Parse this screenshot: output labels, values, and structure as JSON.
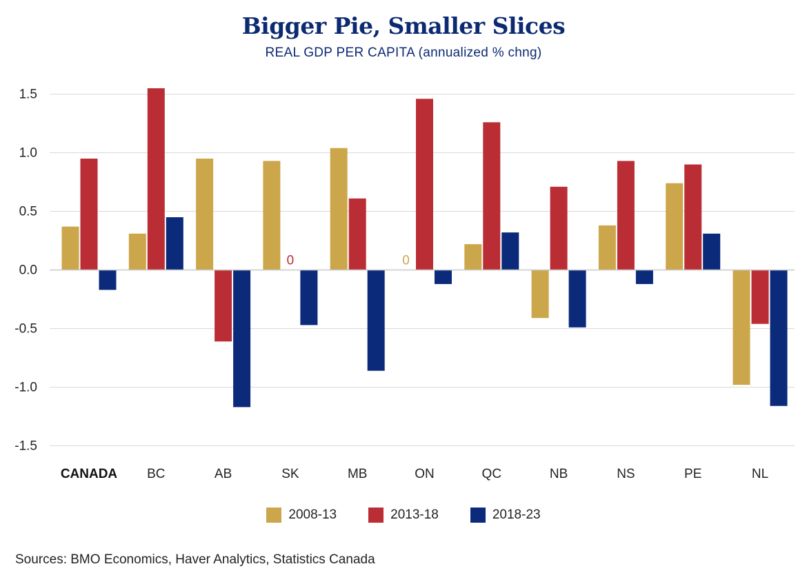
{
  "chart_data": {
    "type": "bar",
    "title": "Bigger Pie, Smaller Slices",
    "subtitle": "REAL GDP PER CAPITA (annualized % chng)",
    "categories": [
      "CANADA",
      "BC",
      "AB",
      "SK",
      "MB",
      "ON",
      "QC",
      "NB",
      "NS",
      "PE",
      "NL"
    ],
    "series": [
      {
        "name": "2008-13",
        "color": "#cca64a",
        "values": [
          0.37,
          0.31,
          0.95,
          0.93,
          1.04,
          0,
          0.22,
          -0.41,
          0.38,
          0.74,
          -0.98
        ]
      },
      {
        "name": "2013-18",
        "color": "#bb2d34",
        "values": [
          0.95,
          1.55,
          -0.61,
          0,
          0.61,
          1.46,
          1.26,
          0.71,
          0.93,
          0.9,
          -0.46
        ]
      },
      {
        "name": "2018-23",
        "color": "#0b2a7a",
        "values": [
          -0.17,
          0.45,
          -1.17,
          -0.47,
          -0.86,
          -0.12,
          0.32,
          -0.49,
          -0.12,
          0.31,
          -1.16
        ]
      }
    ],
    "zero_labels": [
      {
        "category": "SK",
        "series": "2013-18",
        "text": "0"
      },
      {
        "category": "ON",
        "series": "2008-13",
        "text": "0"
      }
    ],
    "yticks": [
      "1.5",
      "1.0",
      "0.5",
      "0.0",
      "-0.5",
      "-1.0",
      "-1.5"
    ],
    "ytick_values": [
      1.5,
      1.0,
      0.5,
      0.0,
      -0.5,
      -1.0,
      -1.5
    ],
    "ylim": [
      -1.5,
      1.5
    ],
    "grid": true,
    "legend_position": "bottom-center",
    "source": "Sources: BMO Economics, Haver Analytics, Statistics Canada"
  }
}
